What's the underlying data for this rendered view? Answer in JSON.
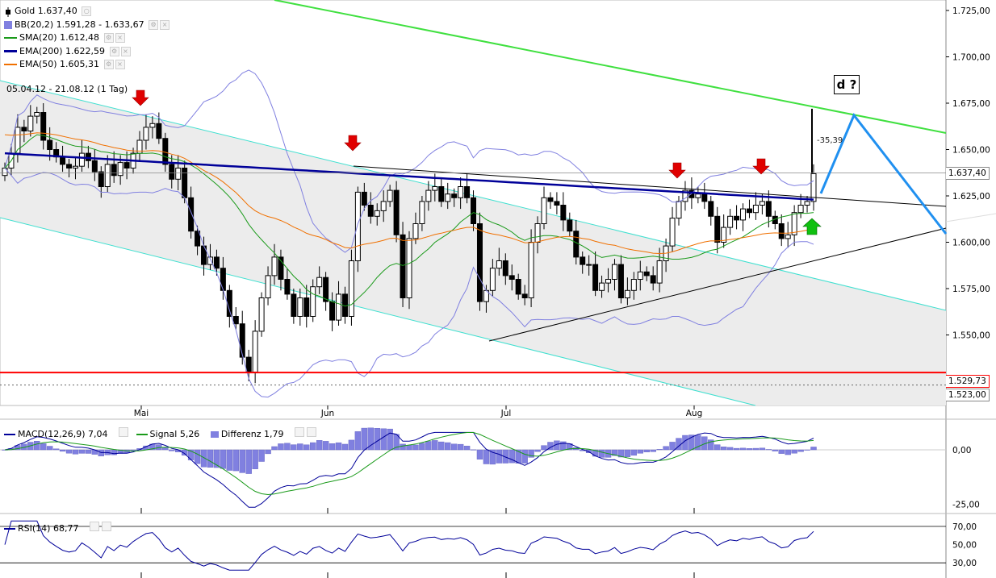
{
  "legend": {
    "gold": "Gold 1.637,40",
    "bb": "BB(20,2) 1.591,28 - 1.633,67",
    "sma": "SMA(20) 1.612,48",
    "ema200": "EMA(200) 1.622,59",
    "ema50": "EMA(50) 1.605,31",
    "period": "05.04.12 - 21.08.12 (1 Tag)"
  },
  "colors": {
    "sma": "#1a9a1a",
    "ema200": "#000099",
    "ema50": "#f07000",
    "bb": "#8080e0",
    "channel": "#40e0d0",
    "resistance": "#40e040",
    "support": "#ff0000",
    "projection": "#2090f0",
    "arrow_down": "#e00000",
    "arrow_up": "#10c010"
  },
  "annotations": {
    "d_label": "d ?",
    "diff_label": "-35,39"
  },
  "chart_data": [
    {
      "type": "candlestick",
      "title": "",
      "x": [
        "Mai",
        "Jun",
        "Jul",
        "Aug"
      ],
      "ylim": [
        1540,
        1725
      ],
      "y_ticks": [
        "1.725,00",
        "1.700,00",
        "1.675,00",
        "1.650,00",
        "1.625,00",
        "1.600,00",
        "1.575,00",
        "1.550,00"
      ],
      "price_tags": [
        "1.637,40",
        "1.529,73",
        "1.523,00"
      ],
      "support_level": 1529.73,
      "dotted_level": 1523.0,
      "last_price": 1637.4,
      "grid": false,
      "close_series": [
        1640,
        1648,
        1662,
        1660,
        1668,
        1670,
        1655,
        1650,
        1646,
        1642,
        1640,
        1641,
        1648,
        1644,
        1638,
        1630,
        1642,
        1636,
        1643,
        1640,
        1648,
        1655,
        1662,
        1664,
        1656,
        1642,
        1634,
        1640,
        1624,
        1606,
        1598,
        1588,
        1592,
        1586,
        1574,
        1560,
        1556,
        1538,
        1530,
        1552,
        1570,
        1582,
        1592,
        1580,
        1572,
        1560,
        1570,
        1560,
        1576,
        1581,
        1568,
        1558,
        1572,
        1560,
        1590,
        1627,
        1620,
        1614,
        1617,
        1622,
        1628,
        1604,
        1570,
        1602,
        1610,
        1622,
        1628,
        1630,
        1622,
        1626,
        1624,
        1630,
        1624,
        1610,
        1568,
        1574,
        1586,
        1590,
        1582,
        1580,
        1572,
        1570,
        1600,
        1610,
        1624,
        1622,
        1620,
        1612,
        1606,
        1592,
        1588,
        1588,
        1574,
        1578,
        1580,
        1588,
        1570,
        1574,
        1580,
        1584,
        1582,
        1578,
        1590,
        1598,
        1613,
        1622,
        1628,
        1624,
        1626,
        1622,
        1614,
        1600,
        1608,
        1614,
        1612,
        1618,
        1616,
        1620,
        1622,
        1614,
        1610,
        1602,
        1604,
        1616,
        1620,
        1622,
        1637
      ]
    },
    {
      "type": "line",
      "title": "MACD",
      "legend": [
        "MACD(12,26,9) 7,04",
        "Signal 5,26",
        "Differenz 1,79"
      ],
      "y_ticks": [
        "0,00",
        "-25,00"
      ],
      "ylim": [
        -33,
        9
      ]
    },
    {
      "type": "line",
      "title": "RSI",
      "legend": [
        "RSI(14) 68,77"
      ],
      "y_ticks": [
        "70,00",
        "50,00",
        "30,00"
      ],
      "ylim": [
        20,
        78
      ]
    }
  ]
}
